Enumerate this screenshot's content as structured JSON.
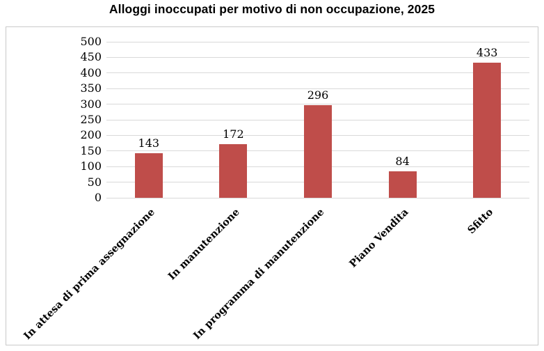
{
  "chart_data": {
    "type": "bar",
    "title": "Alloggi inoccupati per motivo di non occupazione, 2025",
    "categories": [
      "In attesa di prima assegnazione",
      "In manutenzione",
      "In programma di manutenzione",
      "Piano Vendita",
      "Sfitto"
    ],
    "values": [
      143,
      172,
      296,
      84,
      433
    ],
    "xlabel": "",
    "ylabel": "",
    "ylim": [
      0,
      500
    ],
    "ytick_step": 50,
    "grid": true,
    "legend": false,
    "show_value_labels": true,
    "xlabel_rotation_deg": 45,
    "colors": {
      "bar": "#bf4d4a",
      "gridline": "#d9d9d9",
      "frame_border": "#c9c9c9",
      "text": "#000000"
    }
  }
}
